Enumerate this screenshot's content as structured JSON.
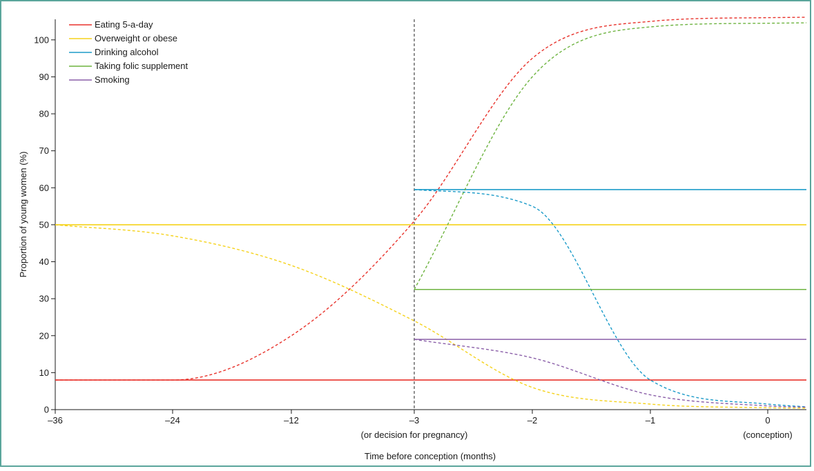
{
  "chart_data": {
    "type": "line",
    "xlabel": "Time before conception (months)",
    "ylabel": "Proportion of young women (%)",
    "ylim": [
      0,
      105
    ],
    "grid": false,
    "legend_position": "top-left",
    "x_ticks": [
      {
        "label": "–36",
        "sublabel": ""
      },
      {
        "label": "–24",
        "sublabel": ""
      },
      {
        "label": "–12",
        "sublabel": ""
      },
      {
        "label": "–3",
        "sublabel": "(or decision for pregnancy)"
      },
      {
        "label": "–2",
        "sublabel": ""
      },
      {
        "label": "–1",
        "sublabel": ""
      },
      {
        "label": "0",
        "sublabel": "(conception)"
      }
    ],
    "y_ticks": [
      0,
      10,
      20,
      30,
      40,
      50,
      60,
      70,
      80,
      90,
      100
    ],
    "reference_line": {
      "x": "–3",
      "style": "dashed",
      "color": "#555555"
    },
    "series": [
      {
        "name": "Eating 5-a-day",
        "color": "#e8322b",
        "baseline": {
          "from": "–36",
          "to": "0",
          "value": 8
        },
        "trend": [
          {
            "x": "–36",
            "y": 8
          },
          {
            "x": "–24",
            "y": 8
          },
          {
            "x": "–12",
            "y": 20
          },
          {
            "x": "–3",
            "y": 51
          },
          {
            "x": "–2",
            "y": 95
          },
          {
            "x": "–1",
            "y": 105
          },
          {
            "x": "0",
            "y": 106
          }
        ]
      },
      {
        "name": "Overweight or obese",
        "color": "#f5d21a",
        "baseline": {
          "from": "–36",
          "to": "0",
          "value": 50
        },
        "trend": [
          {
            "x": "–36",
            "y": 50
          },
          {
            "x": "–24",
            "y": 47
          },
          {
            "x": "–12",
            "y": 39
          },
          {
            "x": "–3",
            "y": 24
          },
          {
            "x": "–2",
            "y": 6
          },
          {
            "x": "–1",
            "y": 1.5
          },
          {
            "x": "0",
            "y": 0.5
          }
        ]
      },
      {
        "name": "Drinking alcohol",
        "color": "#1b9bc9",
        "baseline": {
          "from": "–3",
          "to": "0",
          "value": 59.5
        },
        "trend": [
          {
            "x": "–3",
            "y": 59.5
          },
          {
            "x": "–2",
            "y": 55
          },
          {
            "x": "–1",
            "y": 8
          },
          {
            "x": "0",
            "y": 1.5
          }
        ]
      },
      {
        "name": "Taking folic supplement",
        "color": "#6db33f",
        "baseline": {
          "from": "–3",
          "to": "0",
          "value": 32.5
        },
        "trend": [
          {
            "x": "–3",
            "y": 32.5
          },
          {
            "x": "–2",
            "y": 90
          },
          {
            "x": "–1",
            "y": 103.5
          },
          {
            "x": "0",
            "y": 104.5
          }
        ]
      },
      {
        "name": "Smoking",
        "color": "#8a5ea8",
        "baseline": {
          "from": "–3",
          "to": "0",
          "value": 19
        },
        "trend": [
          {
            "x": "–3",
            "y": 19
          },
          {
            "x": "–2",
            "y": 14
          },
          {
            "x": "–1",
            "y": 4
          },
          {
            "x": "0",
            "y": 1
          }
        ]
      }
    ]
  }
}
